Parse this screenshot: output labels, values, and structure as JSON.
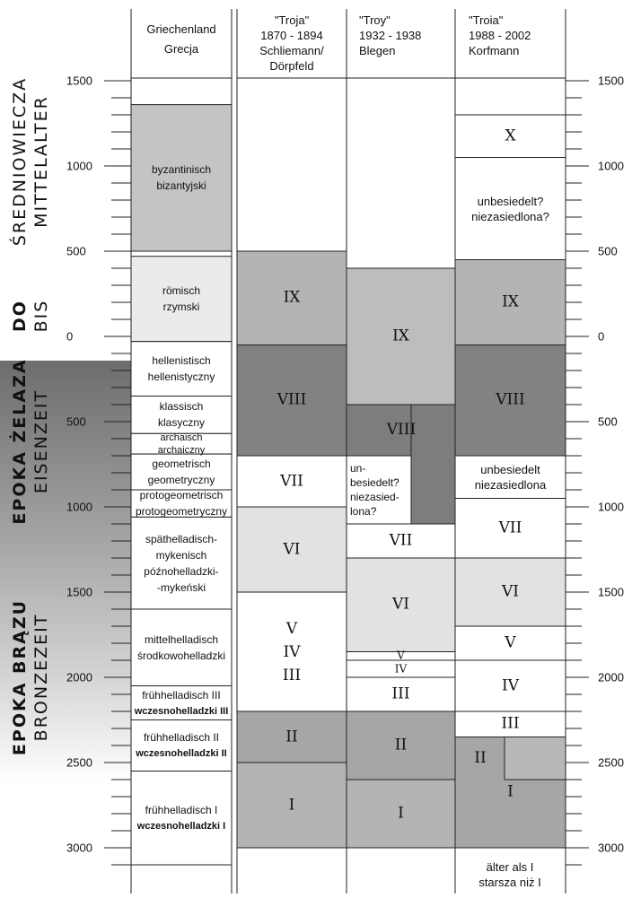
{
  "left_labels": {
    "middle_ages_pl": "ŚREDNIOWIECZA",
    "middle_ages_de": "MITTELALTER",
    "until_pl": "DO",
    "until_de": "BIS",
    "iron_age_pl": "EPOKA ŻELAZA",
    "iron_age_de": "EISENZEIT",
    "bronze_age_pl": "EPOKA BRĄZU",
    "bronze_age_de": "BRONZEZEIT"
  },
  "headers": {
    "greece": "Griechenland\nGrecja",
    "schliemann": "\"Troja\"\n1870 - 1894\nSchliemann/\nDörpfeld",
    "blegen": "\"Troy\"\n1932 - 1938\nBlegen",
    "korfmann": "\"Troia\"\n1988 - 2002\nKorfmann"
  },
  "axis_ticks": [
    "1500",
    "1000",
    "500",
    "0",
    "500",
    "1000",
    "1500",
    "2000",
    "2500",
    "3000"
  ],
  "greece_epochs": [
    {
      "de": "byzantinisch",
      "pl": "bizantyjski",
      "from": 1360,
      "to": 500,
      "shade": "#c4c4c4"
    },
    {
      "de": "römisch",
      "pl": "rzymski",
      "from": 470,
      "to": -30,
      "shade": "#ebebeb"
    },
    {
      "de": "hellenistisch",
      "pl": "hellenistyczny",
      "from": -30,
      "to": -350,
      "shade": "#ffffff"
    },
    {
      "de": "klassisch",
      "pl": "klasyczny",
      "from": -350,
      "to": -570,
      "shade": "#ffffff"
    },
    {
      "de": "archaisch",
      "pl": "archaiczny",
      "from": -570,
      "to": -690,
      "shade": "#ffffff"
    },
    {
      "de": "geometrisch",
      "pl": "geometryczny",
      "from": -690,
      "to": -900,
      "shade": "#ffffff"
    },
    {
      "de": "protogeometrisch",
      "pl": "protogeometryczny",
      "from": -900,
      "to": -1060,
      "shade": "#ffffff"
    },
    {
      "de": "späthelladisch-\nmykenisch",
      "pl": "późnohelladzki-\n-mykeński",
      "from": -1060,
      "to": -1600,
      "shade": "#ffffff"
    },
    {
      "de": "mittelhelladisch",
      "pl": "środkowohelladzki",
      "from": -1600,
      "to": -2050,
      "shade": "#ffffff"
    },
    {
      "de": "frühhelladisch III",
      "pl": "wczesnohelladzki III",
      "from": -2050,
      "to": -2250,
      "shade": "#ffffff"
    },
    {
      "de": "frühhelladisch II",
      "pl": "wczesnohelladzki II",
      "from": -2250,
      "to": -2550,
      "shade": "#ffffff"
    },
    {
      "de": "frühhelladisch I",
      "pl": "wczesnohelladzki I",
      "from": -2550,
      "to": -3100,
      "shade": "#ffffff"
    }
  ],
  "schliemann_layers": [
    {
      "label": "IX",
      "from": 500,
      "to": -50,
      "shade": "#b4b4b4"
    },
    {
      "label": "VIII",
      "from": -50,
      "to": -700,
      "shade": "#828282"
    },
    {
      "label": "VII",
      "from": -700,
      "to": -1000,
      "shade": "#ffffff"
    },
    {
      "label": "VI",
      "from": -1000,
      "to": -1500,
      "shade": "#e2e2e2"
    },
    {
      "label": "V\nIV\nIII",
      "from": -1500,
      "to": -2200,
      "shade": "#ffffff"
    },
    {
      "label": "II",
      "from": -2200,
      "to": -2500,
      "shade": "#a6a6a6"
    },
    {
      "label": "I",
      "from": -2500,
      "to": -3000,
      "shade": "#b4b4b4"
    }
  ],
  "blegen_layers": [
    {
      "label": "IX",
      "from": 400,
      "to": -400,
      "shade": "#bdbdbd"
    },
    {
      "label": "VII",
      "from": -1100,
      "to": -1300,
      "shade": "#ffffff"
    },
    {
      "label": "VI",
      "from": -1300,
      "to": -1850,
      "shade": "#e2e2e2"
    },
    {
      "label": "V",
      "from": -1850,
      "to": -1900,
      "shade": "#ffffff"
    },
    {
      "label": "IV",
      "from": -1900,
      "to": -2000,
      "shade": "#ffffff"
    },
    {
      "label": "III",
      "from": -2000,
      "to": -2200,
      "shade": "#ffffff"
    },
    {
      "label": "II",
      "from": -2200,
      "to": -2600,
      "shade": "#a6a6a6"
    },
    {
      "label": "I",
      "from": -2600,
      "to": -3000,
      "shade": "#b4b4b4"
    }
  ],
  "blegen_viii": {
    "label": "VIII",
    "from": -400,
    "to": -1100,
    "shade": "#7d7d7d"
  },
  "blegen_unsettled": "un-\nbesiedelt?\nniezasied-\nlona?",
  "korfmann_layers": [
    {
      "label": "X",
      "from": 1300,
      "to": 1050,
      "shade": "#ffffff"
    },
    {
      "label": "unbesiedelt?\nniezasiedlona?",
      "from": 1050,
      "to": 450,
      "shade": "#ffffff"
    },
    {
      "label": "IX",
      "from": 450,
      "to": -50,
      "shade": "#b4b4b4"
    },
    {
      "label": "VIII",
      "from": -50,
      "to": -700,
      "shade": "#828282"
    },
    {
      "label": "unbesiedelt\nniezasiedlona",
      "from": -700,
      "to": -950,
      "shade": "#ffffff"
    },
    {
      "label": "VII",
      "from": -950,
      "to": -1300,
      "shade": "#ffffff"
    },
    {
      "label": "VI",
      "from": -1300,
      "to": -1700,
      "shade": "#e2e2e2"
    },
    {
      "label": "V",
      "from": -1700,
      "to": -1900,
      "shade": "#ffffff"
    },
    {
      "label": "IV",
      "from": -1900,
      "to": -2200,
      "shade": "#ffffff"
    },
    {
      "label": "III",
      "from": -2200,
      "to": -2350,
      "shade": "#ffffff"
    },
    {
      "label": "I",
      "from": -2350,
      "to": -3000,
      "shade": "#a6a6a6"
    }
  ],
  "korfmann_ii": {
    "label": "II",
    "from": -2350,
    "to": -2600,
    "shade": "#b8b8b8"
  },
  "korfmann_older": "älter als I\nstarsza niż I"
}
